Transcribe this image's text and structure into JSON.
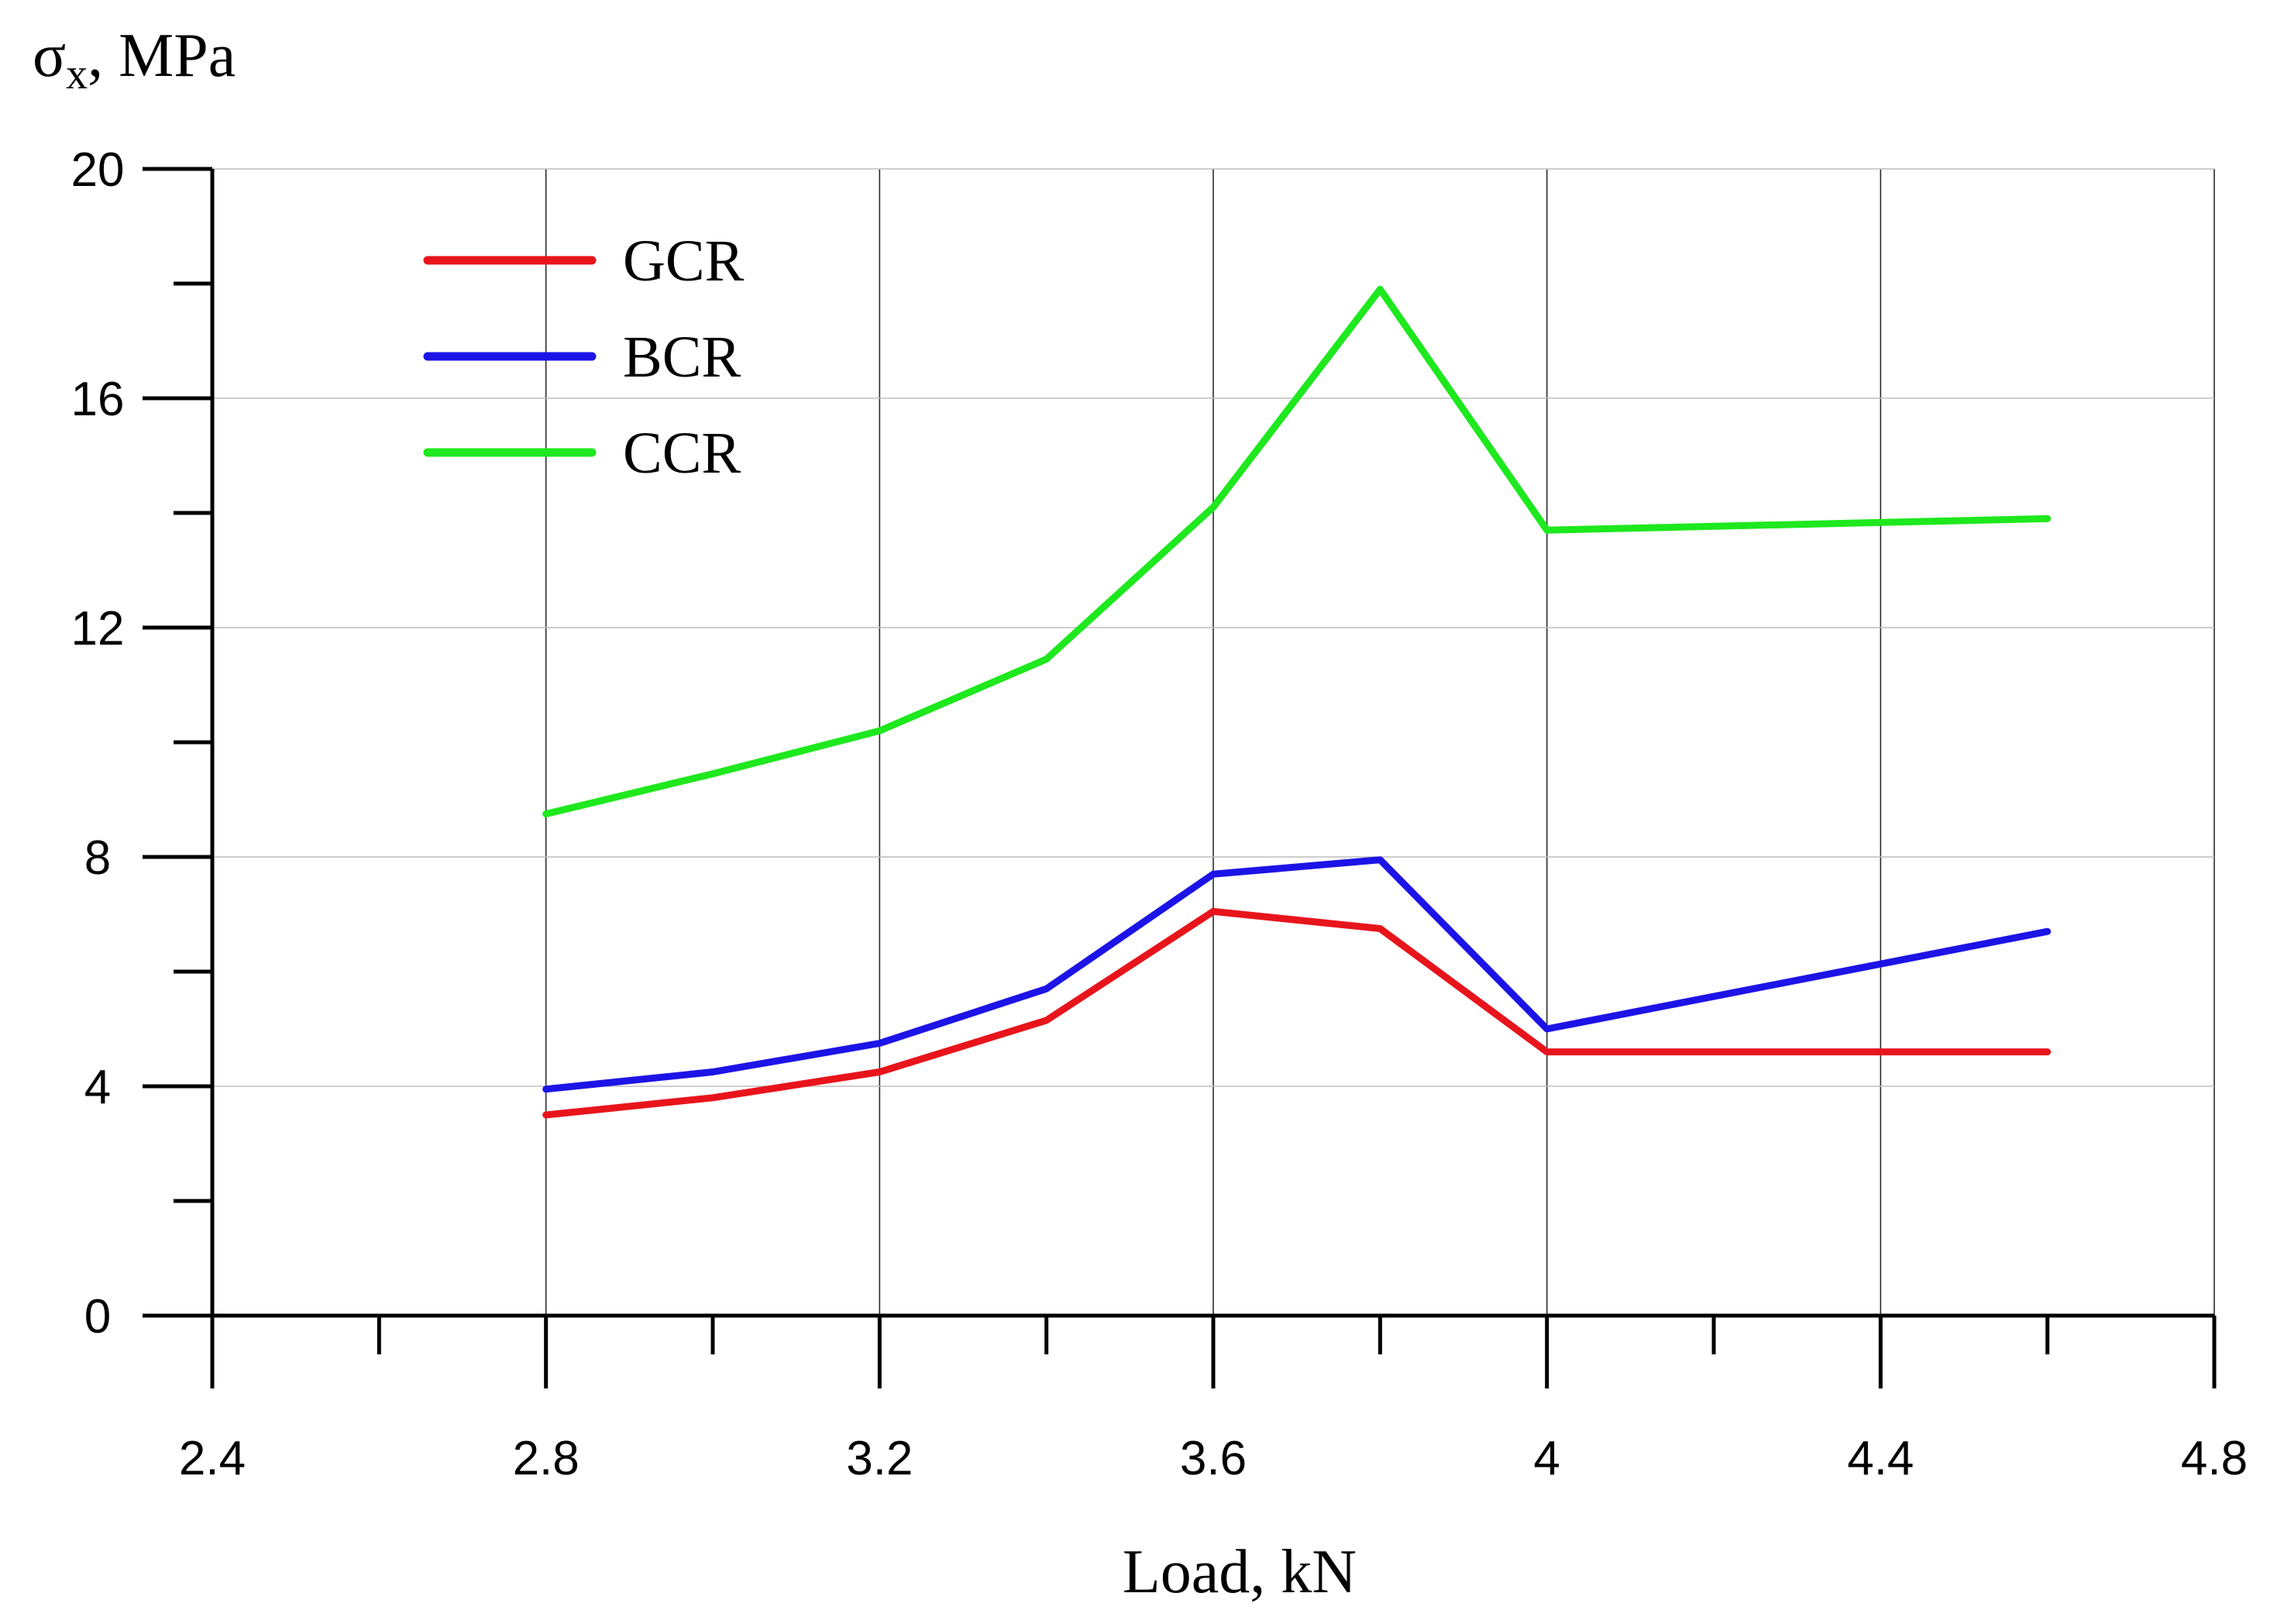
{
  "chart_data": {
    "type": "line",
    "title": "",
    "xlabel": "Load, kN",
    "ylabel": "σx, MPa",
    "ylabel_base": "σ",
    "ylabel_sub": "x",
    "ylabel_rest": ", MPa",
    "xlim": [
      2.4,
      4.8
    ],
    "ylim": [
      0,
      20
    ],
    "x_ticks": [
      "2.4",
      "2.8",
      "3.2",
      "3.6",
      "4",
      "4.4",
      "4.8"
    ],
    "x_tick_values": [
      2.4,
      2.8,
      3.2,
      3.6,
      4.0,
      4.4,
      4.8
    ],
    "x_minor_ticks": [
      2.6,
      3.0,
      3.4,
      3.8,
      4.2,
      4.6
    ],
    "y_ticks": [
      "0",
      "4",
      "8",
      "12",
      "16",
      "20"
    ],
    "y_tick_values": [
      0,
      4,
      8,
      12,
      16,
      20
    ],
    "y_minor_ticks": [
      2,
      6,
      10,
      14,
      18
    ],
    "grid": true,
    "legend_position": "top-left",
    "x": [
      2.8,
      3.0,
      3.2,
      3.4,
      3.6,
      3.8,
      4.0,
      4.6
    ],
    "series": [
      {
        "name": "GCR",
        "color": "#e8141c",
        "values": [
          3.5,
          3.8,
          4.25,
          5.15,
          7.05,
          6.75,
          4.6,
          4.6
        ]
      },
      {
        "name": "BCR",
        "color": "#1c14e6",
        "values": [
          3.95,
          4.25,
          4.75,
          5.7,
          7.7,
          7.95,
          5.0,
          6.7
        ]
      },
      {
        "name": "CCR",
        "color": "#1ee81e",
        "values": [
          8.75,
          9.45,
          10.2,
          11.45,
          14.1,
          17.9,
          13.7,
          13.9
        ]
      }
    ]
  }
}
